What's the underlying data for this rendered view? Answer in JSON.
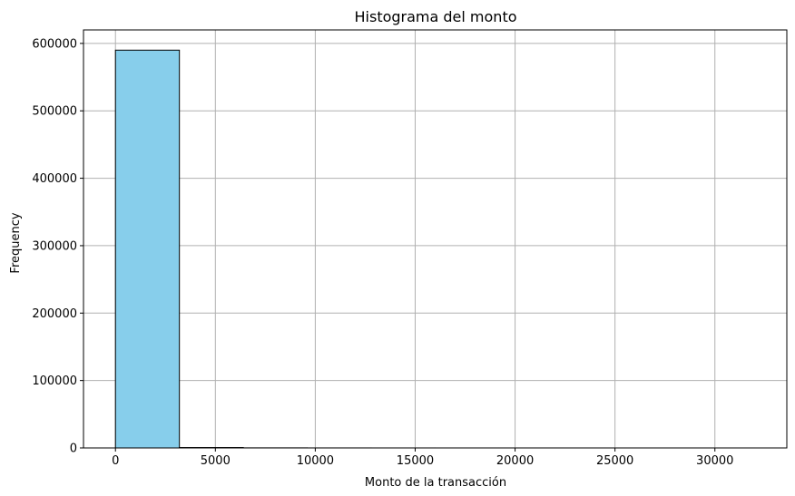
{
  "chart_data": {
    "type": "bar",
    "title": "Histograma del monto",
    "xlabel": "Monto de la transacción",
    "ylabel": "Frequency",
    "xlim": [
      -1600,
      33600
    ],
    "ylim": [
      0,
      620000
    ],
    "x_ticks": [
      0,
      5000,
      10000,
      15000,
      20000,
      25000,
      30000
    ],
    "y_ticks": [
      0,
      100000,
      200000,
      300000,
      400000,
      500000,
      600000
    ],
    "grid": true,
    "bar_color": "#87ceeb",
    "edge_color": "#000000",
    "bins": [
      {
        "x0": 0,
        "x1": 3200,
        "count": 590000
      },
      {
        "x0": 3200,
        "x1": 6400,
        "count": 600
      },
      {
        "x0": 6400,
        "x1": 9600,
        "count": 120
      },
      {
        "x0": 9600,
        "x1": 12800,
        "count": 40
      },
      {
        "x0": 12800,
        "x1": 16000,
        "count": 15
      },
      {
        "x0": 16000,
        "x1": 19200,
        "count": 8
      },
      {
        "x0": 19200,
        "x1": 22400,
        "count": 4
      },
      {
        "x0": 22400,
        "x1": 25600,
        "count": 2
      },
      {
        "x0": 25600,
        "x1": 28800,
        "count": 1
      },
      {
        "x0": 28800,
        "x1": 32000,
        "count": 1
      }
    ]
  }
}
